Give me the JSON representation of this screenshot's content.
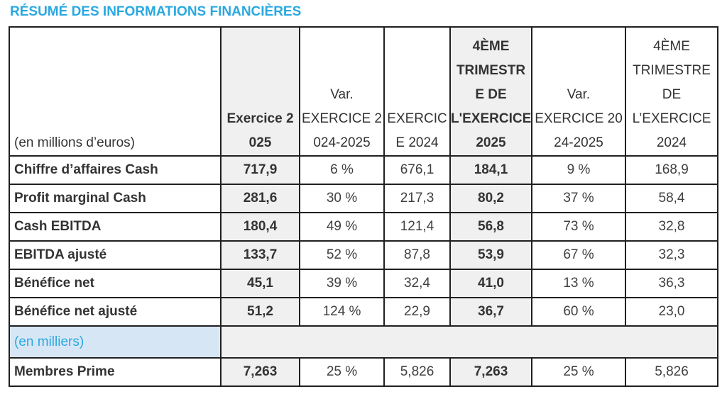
{
  "title": "RÉSUMÉ DES INFORMATIONS FINANCIÈRES",
  "header": {
    "unit_label": "(en millions d’euros)",
    "columns": [
      [
        "Exercice 2",
        "025"
      ],
      [
        "Var.",
        "EXERCICE 2",
        "024-2025"
      ],
      [
        "EXERCIC",
        "E 2024"
      ],
      [
        "4ÈME",
        "TRIMESTR",
        "E DE",
        "L'EXERCICE",
        "2025"
      ],
      [
        "Var.",
        "EXERCICE 20",
        "24-2025"
      ],
      [
        "4ÈME",
        "TRIMESTRE",
        "DE",
        "L’EXERCICE",
        "2024"
      ]
    ]
  },
  "rows": [
    {
      "label": "Chiffre d’affaires Cash",
      "values": [
        "717,9",
        "6 %",
        "676,1",
        "184,1",
        "9 %",
        "168,9"
      ]
    },
    {
      "label": "Profit marginal Cash",
      "values": [
        "281,6",
        "30 %",
        "217,3",
        "80,2",
        "37 %",
        "58,4"
      ]
    },
    {
      "label": "Cash EBITDA",
      "values": [
        "180,4",
        "49 %",
        "121,4",
        "56,8",
        "73 %",
        "32,8"
      ]
    },
    {
      "label": "EBITDA ajusté",
      "values": [
        "133,7",
        "52 %",
        "87,8",
        "53,9",
        "67 %",
        "32,3"
      ]
    },
    {
      "label": "Bénéfice net",
      "values": [
        "45,1",
        "39 %",
        "32,4",
        "41,0",
        "13 %",
        "36,3"
      ]
    },
    {
      "label": "Bénéfice net ajusté",
      "values": [
        "51,2",
        "124 %",
        "22,9",
        "36,7",
        "60 %",
        "23,0"
      ]
    }
  ],
  "section2": {
    "unit_label": "(en milliers)",
    "rows": [
      {
        "label": "Membres Prime",
        "values": [
          "7,263",
          "25 %",
          "5,826",
          "7,263",
          "25 %",
          "5,826"
        ]
      }
    ]
  },
  "colors": {
    "accent": "#29a8e0",
    "shade": "#f0f0f0",
    "section_bg": "#d7e6f5"
  }
}
